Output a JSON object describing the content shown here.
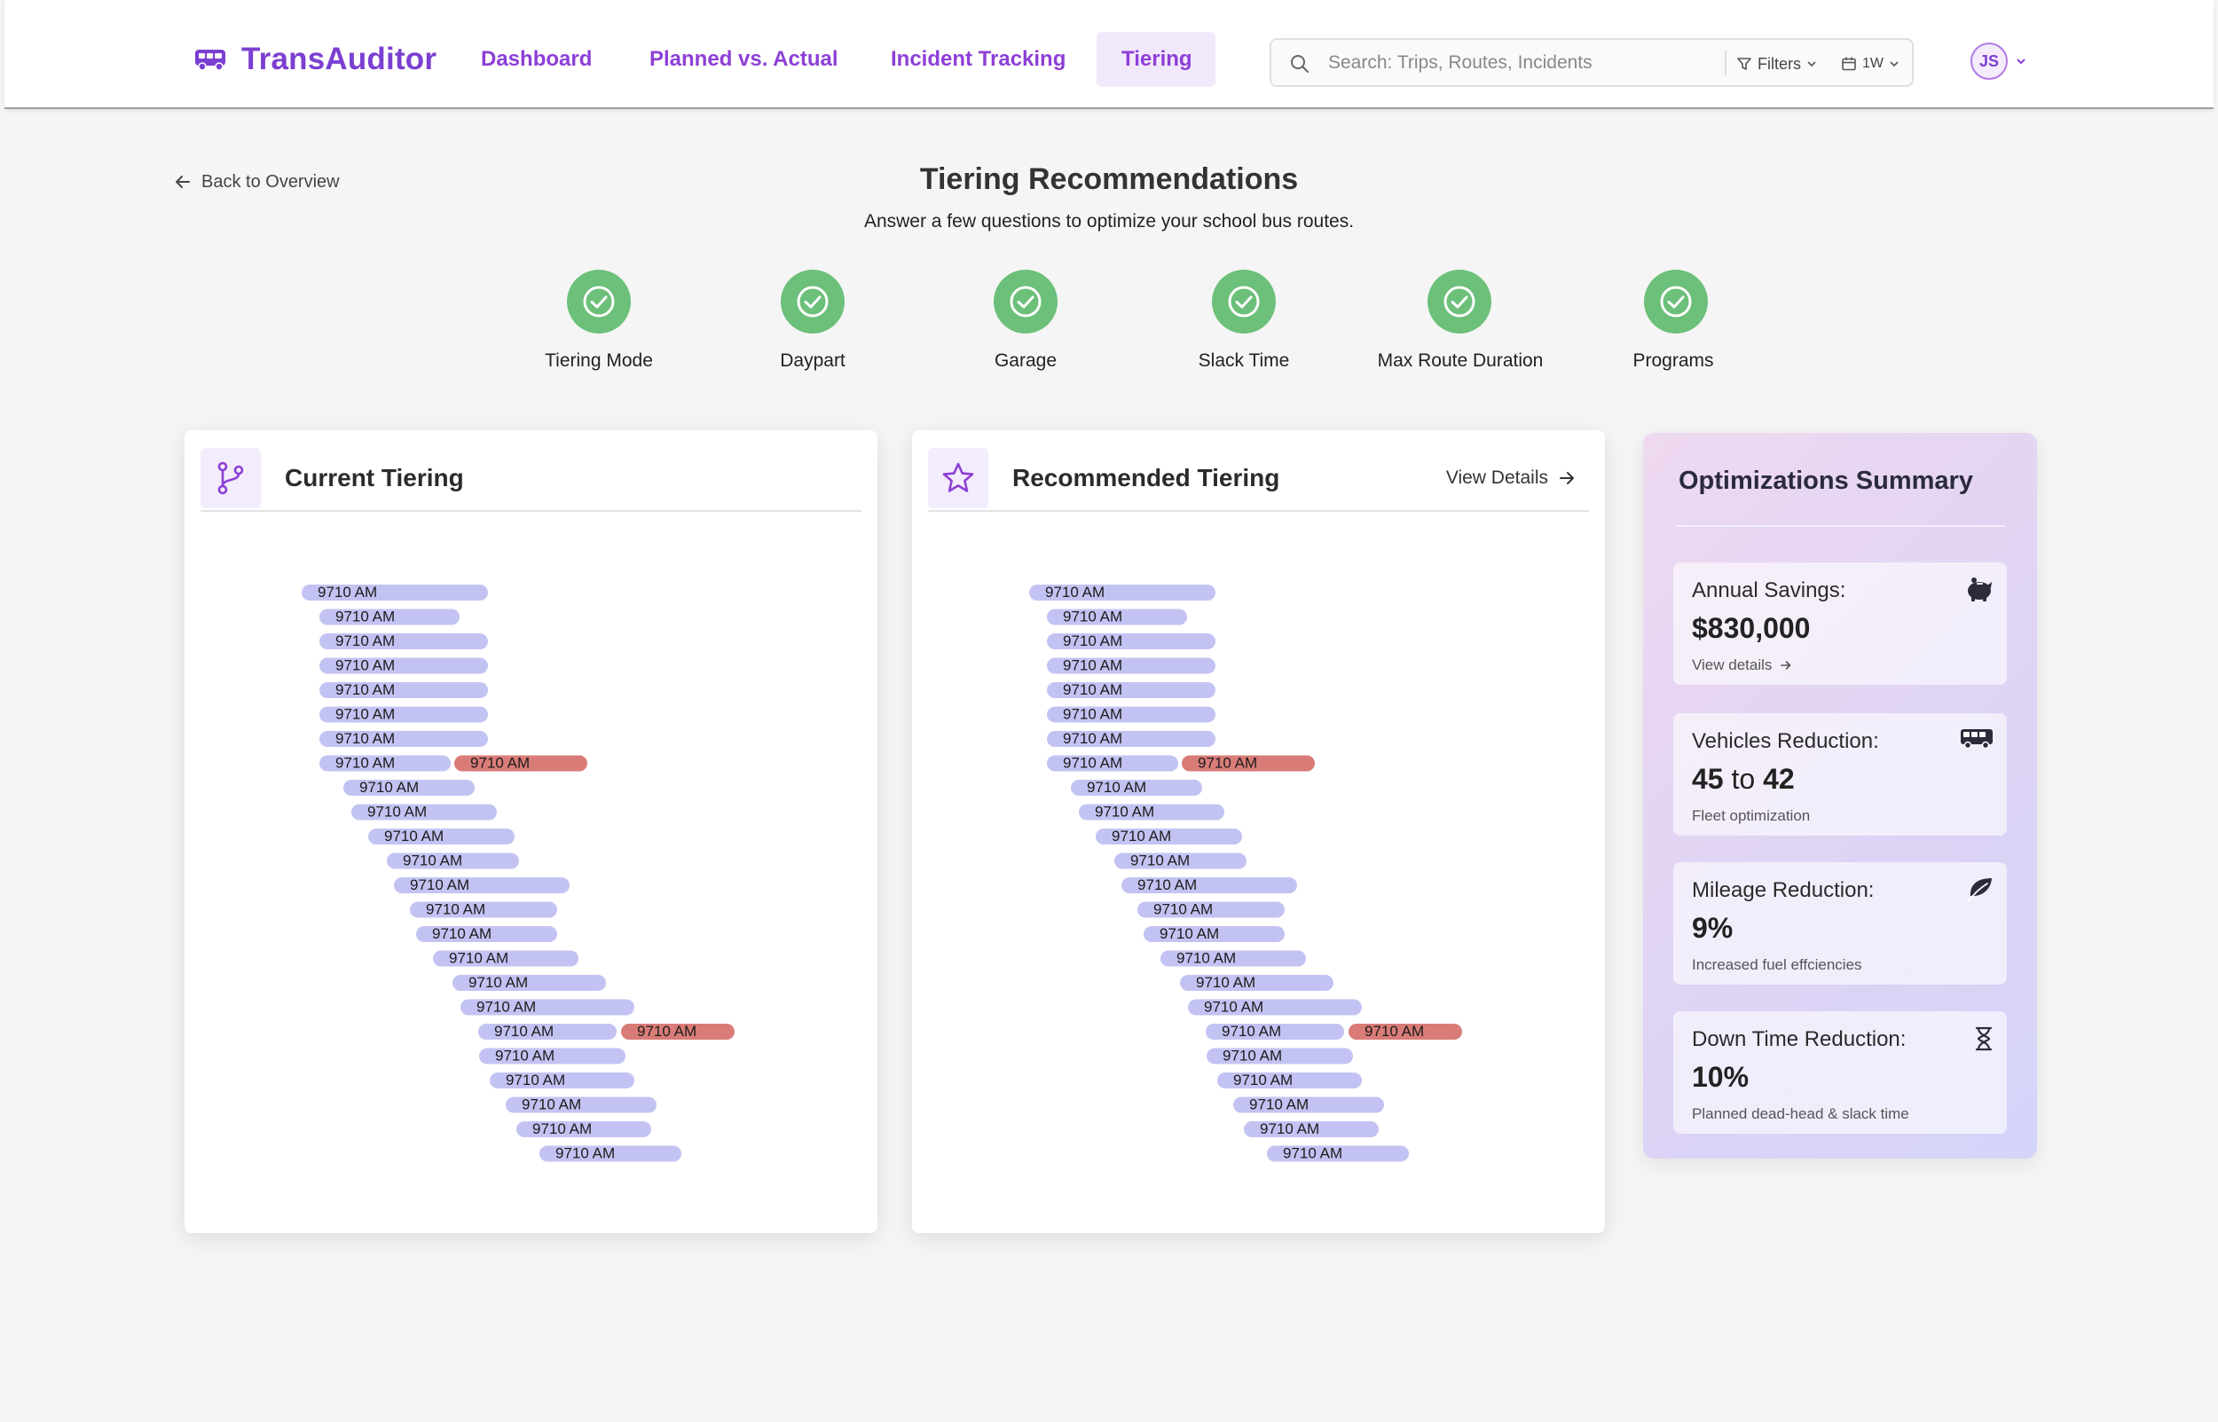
{
  "app": {
    "name": "TransAuditor"
  },
  "nav": [
    {
      "label": "Dashboard",
      "active": false
    },
    {
      "label": "Planned vs. Actual",
      "active": false
    },
    {
      "label": "Incident Tracking",
      "active": false
    },
    {
      "label": "Tiering",
      "active": true
    }
  ],
  "search": {
    "placeholder": "Search: Trips, Routes, Incidents",
    "filters_label": "Filters",
    "range_label": "1W"
  },
  "user": {
    "initials": "JS"
  },
  "page": {
    "back_label": "Back to Overview",
    "title": "Tiering Recommendations",
    "subtitle": "Answer a few questions to optimize your school bus routes."
  },
  "steps": [
    {
      "label": "Tiering Mode",
      "done": true
    },
    {
      "label": "Daypart",
      "done": true
    },
    {
      "label": "Garage",
      "done": true
    },
    {
      "label": "Slack Time",
      "done": true
    },
    {
      "label": "Max Route Duration",
      "done": true
    },
    {
      "label": "Programs",
      "done": true
    }
  ],
  "current_tiering": {
    "title": "Current Tiering"
  },
  "recommended_tiering": {
    "title": "Recommended Tiering",
    "view_details_label": "View Details"
  },
  "colors": {
    "accent": "#8d3fd6",
    "bar": "#c3c3f3",
    "bar_conflict": "#d97c78",
    "step_done": "#6cc07a"
  },
  "chart_data": [
    {
      "type": "gantt",
      "name": "Current Tiering",
      "bar_label": "9710 AM",
      "rows": [
        {
          "label": "9710 AM",
          "start": 0,
          "end": 210
        },
        {
          "label": "9710 AM",
          "start": 20,
          "end": 178
        },
        {
          "label": "9710 AM",
          "start": 20,
          "end": 210
        },
        {
          "label": "9710 AM",
          "start": 20,
          "end": 210
        },
        {
          "label": "9710 AM",
          "start": 20,
          "end": 210
        },
        {
          "label": "9710 AM",
          "start": 20,
          "end": 210
        },
        {
          "label": "9710 AM",
          "start": 20,
          "end": 210
        },
        {
          "label": "9710 AM",
          "start": 20,
          "end": 168,
          "extra": {
            "label": "9710 AM",
            "start": 172,
            "end": 322
          }
        },
        {
          "label": "9710 AM",
          "start": 47,
          "end": 195
        },
        {
          "label": "9710 AM",
          "start": 56,
          "end": 220
        },
        {
          "label": "9710 AM",
          "start": 75,
          "end": 240
        },
        {
          "label": "9710 AM",
          "start": 96,
          "end": 245
        },
        {
          "label": "9710 AM",
          "start": 104,
          "end": 302
        },
        {
          "label": "9710 AM",
          "start": 122,
          "end": 288
        },
        {
          "label": "9710 AM",
          "start": 129,
          "end": 288
        },
        {
          "label": "9710 AM",
          "start": 148,
          "end": 312
        },
        {
          "label": "9710 AM",
          "start": 170,
          "end": 343
        },
        {
          "label": "9710 AM",
          "start": 179,
          "end": 375
        },
        {
          "label": "9710 AM",
          "start": 199,
          "end": 355,
          "extra": {
            "label": "9710 AM",
            "start": 360,
            "end": 488
          }
        },
        {
          "label": "9710 AM",
          "start": 200,
          "end": 365
        },
        {
          "label": "9710 AM",
          "start": 212,
          "end": 375
        },
        {
          "label": "9710 AM",
          "start": 230,
          "end": 400
        },
        {
          "label": "9710 AM",
          "start": 242,
          "end": 394
        },
        {
          "label": "9710 AM",
          "start": 268,
          "end": 428
        }
      ]
    },
    {
      "type": "gantt",
      "name": "Recommended Tiering",
      "bar_label": "9710 AM",
      "rows": [
        {
          "label": "9710 AM",
          "start": 0,
          "end": 210
        },
        {
          "label": "9710 AM",
          "start": 20,
          "end": 178
        },
        {
          "label": "9710 AM",
          "start": 20,
          "end": 210
        },
        {
          "label": "9710 AM",
          "start": 20,
          "end": 210
        },
        {
          "label": "9710 AM",
          "start": 20,
          "end": 210
        },
        {
          "label": "9710 AM",
          "start": 20,
          "end": 210
        },
        {
          "label": "9710 AM",
          "start": 20,
          "end": 210
        },
        {
          "label": "9710 AM",
          "start": 20,
          "end": 168,
          "extra": {
            "label": "9710 AM",
            "start": 172,
            "end": 322
          }
        },
        {
          "label": "9710 AM",
          "start": 47,
          "end": 195
        },
        {
          "label": "9710 AM",
          "start": 56,
          "end": 220
        },
        {
          "label": "9710 AM",
          "start": 75,
          "end": 240
        },
        {
          "label": "9710 AM",
          "start": 96,
          "end": 245
        },
        {
          "label": "9710 AM",
          "start": 104,
          "end": 302
        },
        {
          "label": "9710 AM",
          "start": 122,
          "end": 288
        },
        {
          "label": "9710 AM",
          "start": 129,
          "end": 288
        },
        {
          "label": "9710 AM",
          "start": 148,
          "end": 312
        },
        {
          "label": "9710 AM",
          "start": 170,
          "end": 343
        },
        {
          "label": "9710 AM",
          "start": 179,
          "end": 375
        },
        {
          "label": "9710 AM",
          "start": 199,
          "end": 355,
          "extra": {
            "label": "9710 AM",
            "start": 360,
            "end": 488
          }
        },
        {
          "label": "9710 AM",
          "start": 200,
          "end": 365
        },
        {
          "label": "9710 AM",
          "start": 212,
          "end": 375
        },
        {
          "label": "9710 AM",
          "start": 230,
          "end": 400
        },
        {
          "label": "9710 AM",
          "start": 242,
          "end": 394
        },
        {
          "label": "9710 AM",
          "start": 268,
          "end": 428
        }
      ]
    }
  ],
  "summary": {
    "title": "Optimizations Summary",
    "cards": [
      {
        "label": "Annual Savings:",
        "value": "$830,000",
        "sub": "View details",
        "icon": "piggy-bank-icon"
      },
      {
        "label": "Vehicles Reduction:",
        "value_from": "45",
        "value_to_word": "to",
        "value_to": "42",
        "sub": "Fleet optimization",
        "icon": "bus-icon"
      },
      {
        "label": "Mileage Reduction:",
        "value": "9%",
        "sub": "Increased fuel effciencies",
        "icon": "leaf-icon"
      },
      {
        "label": "Down Time Reduction:",
        "value": "10%",
        "sub": "Planned dead-head & slack time",
        "icon": "hourglass-icon"
      }
    ]
  }
}
